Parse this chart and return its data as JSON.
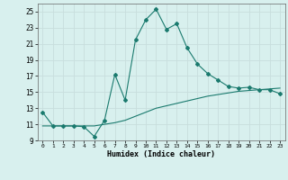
{
  "xlabel": "Humidex (Indice chaleur)",
  "bg_color": "#d8f0ee",
  "grid_color": "#c8dedd",
  "line_color": "#1a7a6e",
  "xlim": [
    -0.5,
    23.5
  ],
  "ylim": [
    9,
    26
  ],
  "yticks": [
    9,
    11,
    13,
    15,
    17,
    19,
    21,
    23,
    25
  ],
  "xticks": [
    0,
    1,
    2,
    3,
    4,
    5,
    6,
    7,
    8,
    9,
    10,
    11,
    12,
    13,
    14,
    15,
    16,
    17,
    18,
    19,
    20,
    21,
    22,
    23
  ],
  "line1_x": [
    0,
    1,
    2,
    3,
    4,
    5,
    6,
    7,
    8,
    9,
    10,
    11,
    12,
    13,
    14,
    15,
    16,
    17,
    18,
    19,
    20,
    21,
    22,
    23
  ],
  "line1_y": [
    12.5,
    10.8,
    10.8,
    10.8,
    10.7,
    9.5,
    11.5,
    17.2,
    14.0,
    21.5,
    24.0,
    25.3,
    22.8,
    23.5,
    20.5,
    18.5,
    17.3,
    16.5,
    15.7,
    15.5,
    15.6,
    15.3,
    15.3,
    14.8
  ],
  "line2_x": [
    0,
    1,
    2,
    3,
    4,
    5,
    6,
    7,
    8,
    9,
    10,
    11,
    12,
    13,
    14,
    15,
    16,
    17,
    18,
    19,
    20,
    21,
    22,
    23
  ],
  "line2_y": [
    10.8,
    10.8,
    10.8,
    10.8,
    10.8,
    10.8,
    11.0,
    11.2,
    11.5,
    12.0,
    12.5,
    13.0,
    13.3,
    13.6,
    13.9,
    14.2,
    14.5,
    14.7,
    14.9,
    15.1,
    15.2,
    15.3,
    15.4,
    15.5
  ]
}
